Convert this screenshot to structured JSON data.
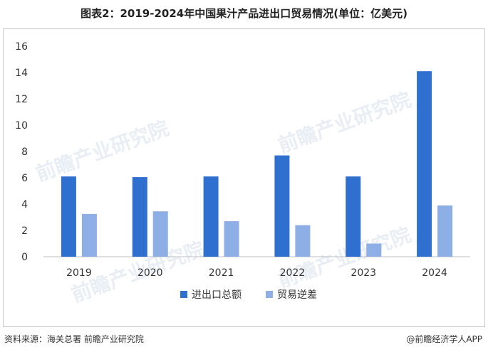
{
  "title": "图表2：2019-2024年中国果汁产品进出口贸易情况(单位：亿美元)",
  "source": "资料来源：海关总署 前瞻产业研究院",
  "credit": "@前瞻经济学人APP",
  "watermark": "前瞻产业研究院",
  "colors": {
    "series1": "#2f6fcf",
    "series2": "#8eaee6",
    "grid": "#d9d9d9",
    "axis": "#bfbfbf"
  },
  "chart_data": {
    "type": "bar",
    "categories": [
      "2019",
      "2020",
      "2021",
      "2022",
      "2023",
      "2024"
    ],
    "series": [
      {
        "name": "进出口总额",
        "values": [
          6.1,
          6.05,
          6.1,
          7.7,
          6.1,
          14.1
        ]
      },
      {
        "name": "贸易逆差",
        "values": [
          3.25,
          3.45,
          2.7,
          2.4,
          1.0,
          3.9
        ]
      }
    ],
    "ylim": [
      0,
      16
    ],
    "yticks": [
      "0",
      "2",
      "4",
      "6",
      "8",
      "10",
      "12",
      "14",
      "16"
    ],
    "grid": false,
    "legend": "bottom"
  }
}
